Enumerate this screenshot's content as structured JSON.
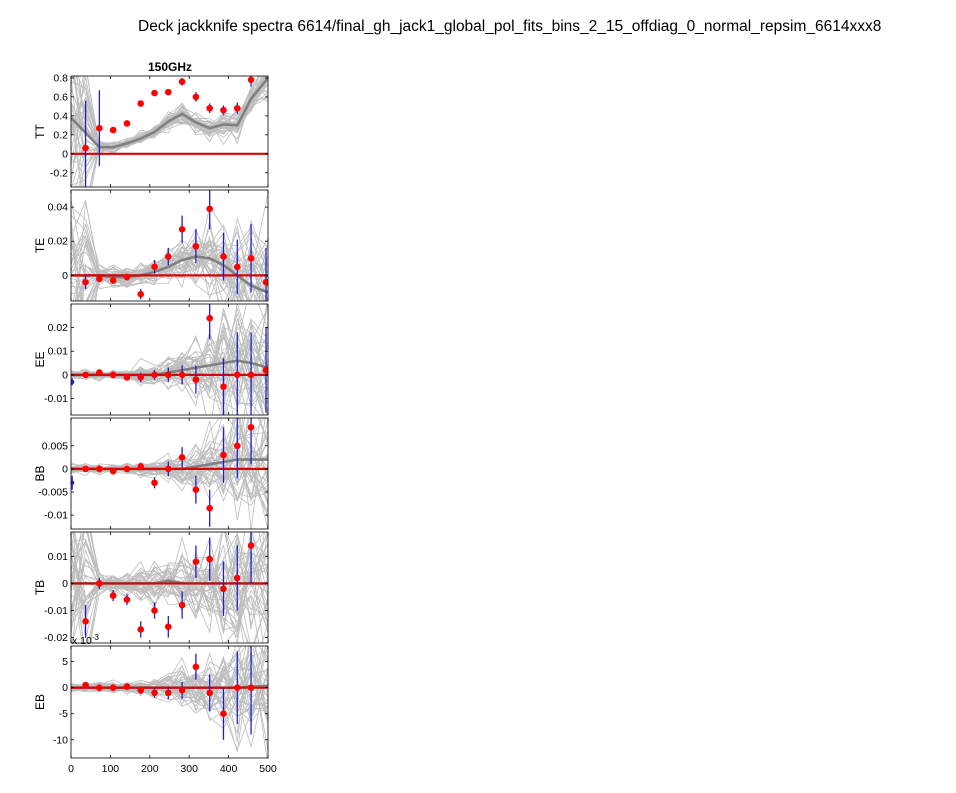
{
  "figure": {
    "title": "Deck jackknife spectra 6614/final_gh_jack1_global_pol_fits_bins_2_15_offdiag_0_normal_repsim_6614xxx8",
    "column_title": "150GHz"
  },
  "colors": {
    "sims": "#bdbdbd",
    "sim_mean": "#808080",
    "real": "#ff0000",
    "errorbar": "#1f1fcc",
    "zero_line": "#dd0000",
    "axes": "#000000"
  },
  "chart_data": [
    {
      "type": "scatter",
      "ylabel": "TT",
      "ylim": [
        -0.35,
        0.82
      ],
      "yticks": [
        -0.2,
        0,
        0.2,
        0.4,
        0.6,
        0.8
      ],
      "yticklabels": [
        "-0.2",
        "0",
        "0.2",
        "0.4",
        "0.6",
        "0.8"
      ],
      "xlim": [
        0,
        500
      ],
      "x": [
        37,
        72,
        107,
        142,
        177,
        212,
        247,
        282,
        317,
        352,
        387,
        422,
        457
      ],
      "real": [
        0.06,
        0.27,
        0.25,
        0.32,
        0.53,
        0.64,
        0.65,
        0.76,
        0.6,
        0.48,
        0.46,
        0.48,
        0.78
      ],
      "sim_mean_x": [
        0,
        37,
        72,
        107,
        142,
        177,
        212,
        247,
        282,
        317,
        352,
        387,
        422,
        457,
        500
      ],
      "sim_mean": [
        0.38,
        0.22,
        0.07,
        0.07,
        0.11,
        0.16,
        0.23,
        0.34,
        0.42,
        0.33,
        0.27,
        0.31,
        0.3,
        0.58,
        0.8
      ],
      "sim_spread": [
        0.6,
        0.45,
        0.03,
        0.03,
        0.03,
        0.03,
        0.03,
        0.04,
        0.05,
        0.05,
        0.05,
        0.06,
        0.07,
        0.08,
        0.12
      ],
      "errors": [
        0.5,
        0.4,
        0.03,
        0.03,
        0.03,
        0.03,
        0.03,
        0.04,
        0.05,
        0.05,
        0.05,
        0.06,
        0.07
      ]
    },
    {
      "type": "scatter",
      "ylabel": "TE",
      "ylim": [
        -0.015,
        0.05
      ],
      "yticks": [
        0,
        0.02,
        0.04
      ],
      "yticklabels": [
        "0",
        "0.02",
        "0.04"
      ],
      "xlim": [
        0,
        500
      ],
      "x": [
        37,
        72,
        107,
        142,
        177,
        212,
        247,
        282,
        317,
        352,
        387,
        422,
        457,
        495
      ],
      "real": [
        -0.004,
        -0.002,
        -0.003,
        -0.001,
        -0.011,
        0.005,
        0.011,
        0.027,
        0.017,
        0.039,
        0.011,
        0.005,
        0.01,
        -0.004
      ],
      "sim_mean_x": [
        0,
        37,
        72,
        107,
        142,
        177,
        212,
        247,
        282,
        317,
        352,
        387,
        422,
        457,
        500
      ],
      "sim_mean": [
        0.0,
        0.0,
        0.0,
        -0.001,
        -0.001,
        0.0,
        0.002,
        0.005,
        0.009,
        0.011,
        0.01,
        0.006,
        0.0,
        -0.006,
        -0.01
      ],
      "sim_spread": [
        0.03,
        0.025,
        0.003,
        0.003,
        0.003,
        0.003,
        0.004,
        0.005,
        0.006,
        0.008,
        0.01,
        0.013,
        0.016,
        0.02,
        0.03
      ],
      "errors": [
        0.004,
        0.002,
        0.002,
        0.002,
        0.003,
        0.004,
        0.005,
        0.008,
        0.01,
        0.012,
        0.014,
        0.016,
        0.02,
        0.02
      ]
    },
    {
      "type": "scatter",
      "ylabel": "EE",
      "ylim": [
        -0.017,
        0.03
      ],
      "yticks": [
        -0.01,
        0,
        0.01,
        0.02
      ],
      "yticklabels": [
        "-0.01",
        "0",
        "0.01",
        "0.02"
      ],
      "xlim": [
        0,
        500
      ],
      "x": [
        3,
        37,
        72,
        107,
        142,
        177,
        212,
        247,
        282,
        317,
        352,
        387,
        422,
        457,
        495
      ],
      "real": [
        -0.003,
        0.0,
        0.001,
        0.0,
        -0.001,
        -0.001,
        0.0,
        0.0,
        0.0,
        -0.002,
        0.024,
        -0.005,
        0.0,
        0.0,
        0.002
      ],
      "sim_mean_x": [
        0,
        37,
        72,
        107,
        142,
        177,
        212,
        247,
        282,
        317,
        352,
        387,
        422,
        457,
        500
      ],
      "sim_mean": [
        0.0,
        0.0,
        0.0,
        0.0,
        0.0,
        0.0,
        0.0,
        0.001,
        0.002,
        0.003,
        0.004,
        0.005,
        0.006,
        0.005,
        0.003
      ],
      "sim_spread": [
        0.001,
        0.001,
        0.001,
        0.001,
        0.001,
        0.002,
        0.002,
        0.003,
        0.004,
        0.006,
        0.009,
        0.012,
        0.014,
        0.016,
        0.018
      ],
      "errors": [
        0.0015,
        0.001,
        0.001,
        0.001,
        0.001,
        0.002,
        0.002,
        0.003,
        0.004,
        0.006,
        0.009,
        0.012,
        0.018,
        0.018,
        0.018
      ]
    },
    {
      "type": "scatter",
      "ylabel": "BB",
      "ylim": [
        -0.013,
        0.011
      ],
      "yticks": [
        -0.01,
        -0.005,
        0,
        0.005
      ],
      "yticklabels": [
        "-0.01",
        "-0.005",
        "0",
        "0.005"
      ],
      "xlim": [
        0,
        500
      ],
      "x": [
        3,
        37,
        72,
        107,
        142,
        177,
        212,
        247,
        282,
        317,
        352,
        387,
        422,
        457
      ],
      "real": [
        -0.003,
        0.0,
        0.0,
        -0.0005,
        0.0,
        0.0005,
        -0.003,
        0.0,
        0.0025,
        -0.0045,
        -0.0085,
        0.003,
        0.005,
        0.009
      ],
      "sim_mean_x": [
        0,
        37,
        72,
        107,
        142,
        177,
        212,
        247,
        282,
        317,
        352,
        387,
        422,
        457,
        500
      ],
      "sim_mean": [
        0.0,
        0.0,
        0.0,
        0.0,
        0.0,
        0.0,
        0.0,
        0.0,
        0.0,
        0.0005,
        0.001,
        0.0015,
        0.002,
        0.002,
        0.002
      ],
      "sim_spread": [
        0.0005,
        0.0005,
        0.0005,
        0.0005,
        0.0006,
        0.0008,
        0.001,
        0.0015,
        0.002,
        0.003,
        0.004,
        0.005,
        0.006,
        0.007,
        0.008
      ],
      "errors": [
        0.0015,
        0.0005,
        0.0005,
        0.0005,
        0.0006,
        0.0008,
        0.0012,
        0.0016,
        0.0022,
        0.003,
        0.004,
        0.006,
        0.007,
        0.008
      ]
    },
    {
      "type": "scatter",
      "ylabel": "TB",
      "ylim": [
        -0.022,
        0.019
      ],
      "yticks": [
        -0.02,
        -0.01,
        0,
        0.01
      ],
      "yticklabels": [
        "-0.02",
        "-0.01",
        "0",
        "0.01"
      ],
      "xlim": [
        0,
        500
      ],
      "x": [
        37,
        72,
        107,
        142,
        177,
        212,
        247,
        282,
        317,
        352,
        387,
        422,
        457
      ],
      "real": [
        -0.014,
        0.0,
        -0.0045,
        -0.006,
        -0.017,
        -0.01,
        -0.016,
        -0.008,
        0.008,
        0.009,
        -0.002,
        0.002,
        0.014
      ],
      "sim_mean_x": [
        0,
        37,
        72,
        107,
        142,
        177,
        212,
        247,
        282,
        317,
        352,
        387,
        422,
        457,
        500
      ],
      "sim_mean": [
        0.0,
        0.0,
        0.0,
        0.0,
        0.0,
        0.0,
        0.0,
        0.001,
        0.0,
        0.0,
        0.0,
        0.0,
        0.0,
        0.0,
        0.0
      ],
      "sim_spread": [
        0.02,
        0.018,
        0.002,
        0.002,
        0.002,
        0.003,
        0.003,
        0.004,
        0.005,
        0.006,
        0.008,
        0.01,
        0.012,
        0.014,
        0.016
      ],
      "errors": [
        0.006,
        0.002,
        0.002,
        0.002,
        0.003,
        0.003,
        0.004,
        0.005,
        0.006,
        0.008,
        0.01,
        0.012,
        0.014
      ]
    },
    {
      "type": "scatter",
      "ylabel": "EB",
      "ylim": [
        -13.5,
        8
      ],
      "yticks": [
        -10,
        -5,
        0,
        5
      ],
      "yticklabels": [
        "-10",
        "-5",
        "0",
        "5"
      ],
      "exponent_label": "x 10",
      "exponent": "-3",
      "xlim": [
        0,
        500
      ],
      "xticks": [
        0,
        100,
        200,
        300,
        400,
        500
      ],
      "xticklabels": [
        "0",
        "100",
        "200",
        "300",
        "400",
        "500"
      ],
      "x": [
        37,
        72,
        107,
        142,
        177,
        212,
        247,
        282,
        317,
        352,
        387,
        422,
        457
      ],
      "real": [
        0.5,
        0.0,
        0.0,
        0.2,
        -0.5,
        -1.0,
        -1.0,
        -0.5,
        4.0,
        -1.0,
        -5.0,
        0.0,
        0.0
      ],
      "sim_mean_x": [
        0,
        37,
        72,
        107,
        142,
        177,
        212,
        247,
        282,
        317,
        352,
        387,
        422,
        457,
        500
      ],
      "sim_mean": [
        0.0,
        0.0,
        0.0,
        0.0,
        0.0,
        0.0,
        0.0,
        0.0,
        0.0,
        0.0,
        0.0,
        0.0,
        0.0,
        0.2,
        0.3
      ],
      "sim_spread": [
        0.5,
        0.4,
        0.4,
        0.5,
        0.6,
        0.8,
        1.0,
        1.3,
        1.8,
        2.5,
        3.3,
        4.2,
        5.2,
        6.0,
        7.0
      ],
      "errors": [
        0.4,
        0.4,
        0.4,
        0.5,
        0.7,
        0.9,
        1.2,
        1.6,
        2.5,
        3.5,
        5.0,
        7.0,
        9.0
      ]
    }
  ]
}
